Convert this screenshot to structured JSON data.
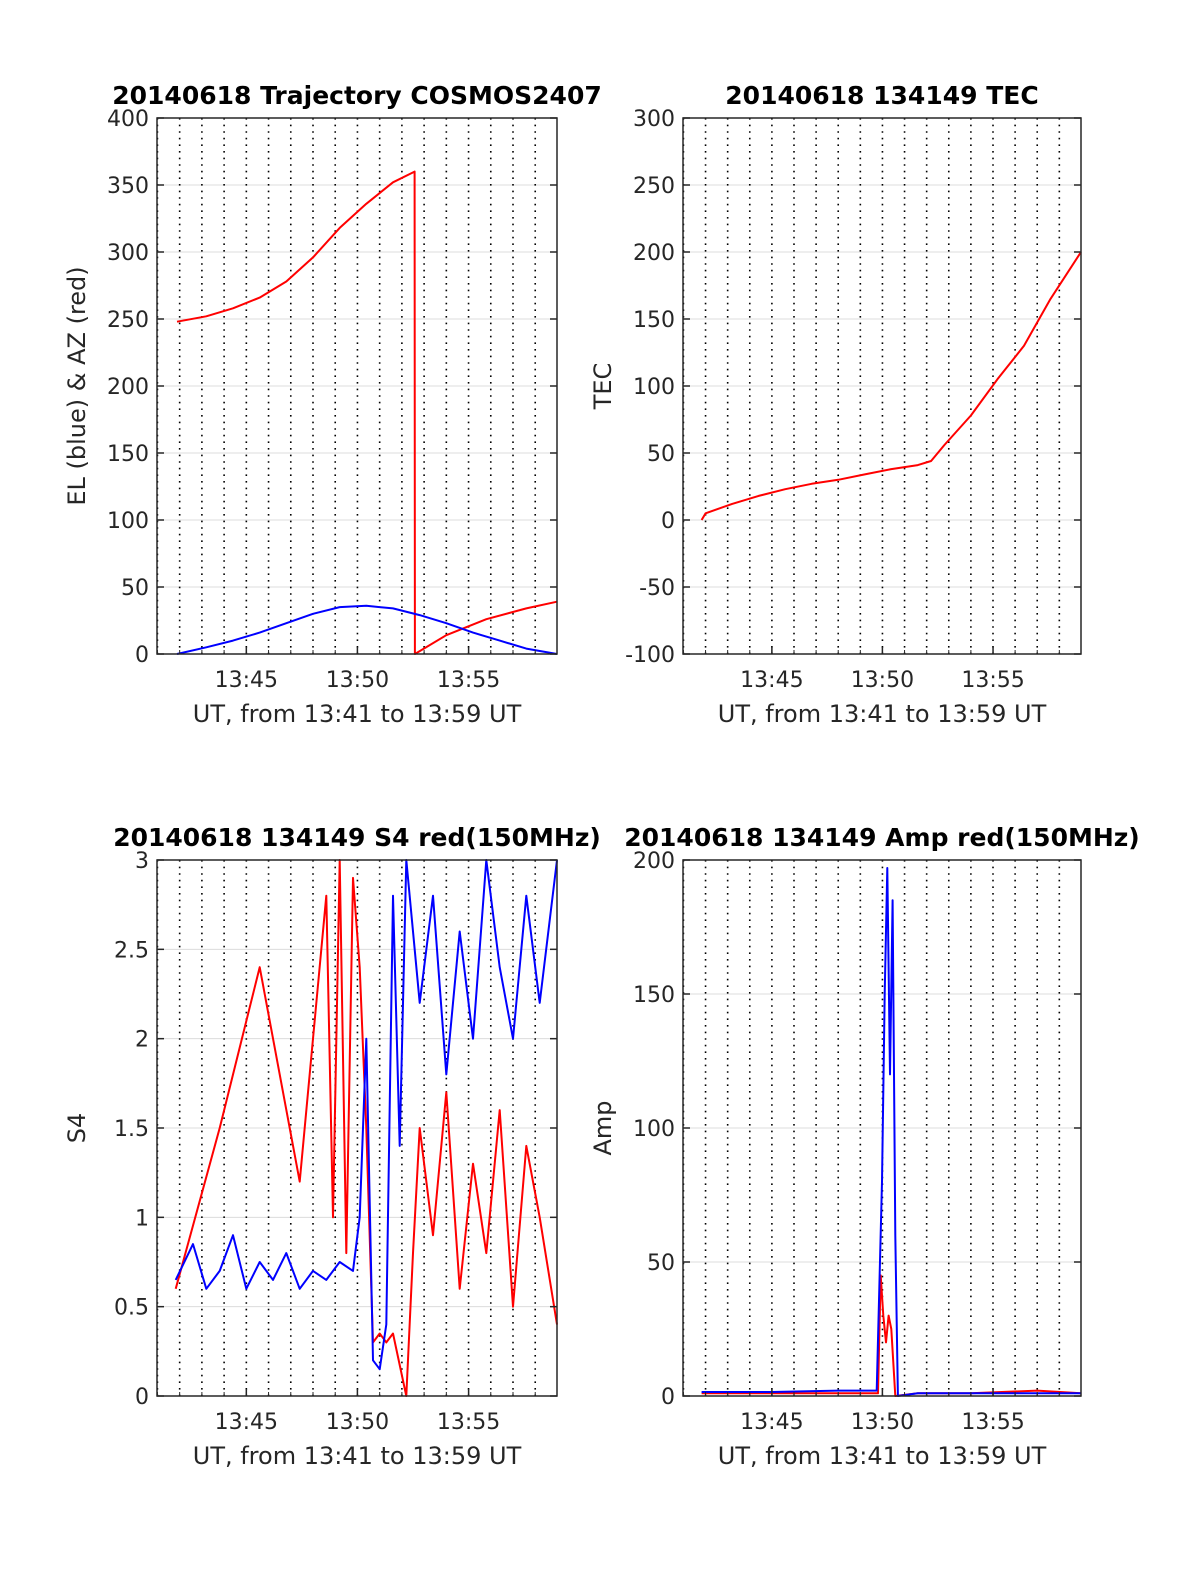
{
  "colors": {
    "red": "#ff0000",
    "blue": "#0000ff",
    "grid": "#dcdcdc",
    "axis": "#262626"
  },
  "chart_data": [
    {
      "type": "line",
      "title": "20140618 Trajectory COSMOS2407",
      "xlabel": "UT, from 13:41 to 13:59 UT",
      "ylabel": "EL (blue) & AZ (red)",
      "xlim": [
        13.683,
        13.983
      ],
      "ylim": [
        0,
        400
      ],
      "xticks": [
        13.75,
        13.8333,
        13.9167
      ],
      "xtick_labels": [
        "13:45",
        "13:50",
        "13:55"
      ],
      "yticks": [
        0,
        50,
        100,
        150,
        200,
        250,
        300,
        350,
        400
      ],
      "ytick_labels": [
        "0",
        "50",
        "100",
        "150",
        "200",
        "250",
        "300",
        "350",
        "400"
      ],
      "grid": "dotted vertical every 1 min, light horizontal",
      "series": [
        {
          "color": "red",
          "x": [
            13.698,
            13.72,
            13.74,
            13.76,
            13.78,
            13.8,
            13.82,
            13.84,
            13.86,
            13.8762,
            13.8764,
            13.9,
            13.93,
            13.96,
            13.983
          ],
          "y": [
            248,
            252,
            258,
            266,
            278,
            296,
            318,
            336,
            352,
            360,
            0,
            14,
            26,
            34,
            39
          ]
        },
        {
          "color": "blue",
          "x": [
            13.698,
            13.72,
            13.74,
            13.76,
            13.78,
            13.8,
            13.82,
            13.84,
            13.86,
            13.88,
            13.9,
            13.92,
            13.94,
            13.96,
            13.983
          ],
          "y": [
            0,
            5,
            10,
            16,
            23,
            30,
            35,
            36,
            34,
            29,
            23,
            16,
            10,
            4,
            0
          ]
        }
      ]
    },
    {
      "type": "line",
      "title": "20140618 134149 TEC",
      "xlabel": "UT, from 13:41 to 13:59 UT",
      "ylabel": "TEC",
      "xlim": [
        13.683,
        13.983
      ],
      "ylim": [
        -100,
        300
      ],
      "xticks": [
        13.75,
        13.8333,
        13.9167
      ],
      "xtick_labels": [
        "13:45",
        "13:50",
        "13:55"
      ],
      "yticks": [
        -100,
        -50,
        0,
        50,
        100,
        150,
        200,
        250,
        300
      ],
      "ytick_labels": [
        "-100",
        "-50",
        "0",
        "50",
        "100",
        "150",
        "200",
        "250",
        "300"
      ],
      "series": [
        {
          "color": "red",
          "x": [
            13.697,
            13.7,
            13.72,
            13.74,
            13.76,
            13.78,
            13.8,
            13.82,
            13.84,
            13.86,
            13.87,
            13.88,
            13.9,
            13.92,
            13.94,
            13.96,
            13.983
          ],
          "y": [
            0,
            5,
            12,
            18,
            23,
            27,
            30,
            34,
            38,
            41,
            44,
            56,
            78,
            105,
            130,
            165,
            200
          ]
        }
      ]
    },
    {
      "type": "line",
      "title": "20140618 134149 S4 red(150MHz)",
      "xlabel": "UT, from 13:41 to 13:59 UT",
      "ylabel": "S4",
      "xlim": [
        13.683,
        13.983
      ],
      "ylim": [
        0,
        3
      ],
      "xticks": [
        13.75,
        13.8333,
        13.9167
      ],
      "xtick_labels": [
        "13:45",
        "13:50",
        "13:55"
      ],
      "yticks": [
        0,
        0.5,
        1,
        1.5,
        2,
        2.5,
        3
      ],
      "ytick_labels": [
        "0",
        "0.5",
        "1",
        "1.5",
        "2",
        "2.5",
        "3"
      ],
      "series": [
        {
          "color": "red",
          "x": [
            13.697,
            13.73,
            13.76,
            13.79,
            13.81,
            13.815,
            13.82,
            13.825,
            13.83,
            13.835,
            13.84,
            13.845,
            13.85,
            13.855,
            13.86,
            13.87,
            13.875,
            13.88,
            13.89,
            13.9,
            13.91,
            13.92,
            13.93,
            13.94,
            13.95,
            13.96,
            13.97,
            13.983
          ],
          "y": [
            0.6,
            1.5,
            2.4,
            1.2,
            2.8,
            1.0,
            3.0,
            0.8,
            2.9,
            2.4,
            1.5,
            0.3,
            0.35,
            0.3,
            0.35,
            0.0,
            0.8,
            1.5,
            0.9,
            1.7,
            0.6,
            1.3,
            0.8,
            1.6,
            0.5,
            1.4,
            1.0,
            0.4
          ]
        },
        {
          "color": "blue",
          "x": [
            13.697,
            13.71,
            13.72,
            13.73,
            13.74,
            13.75,
            13.76,
            13.77,
            13.78,
            13.79,
            13.8,
            13.81,
            13.82,
            13.83,
            13.835,
            13.84,
            13.845,
            13.85,
            13.855,
            13.86,
            13.865,
            13.87,
            13.88,
            13.89,
            13.9,
            13.91,
            13.92,
            13.93,
            13.94,
            13.95,
            13.96,
            13.97,
            13.983
          ],
          "y": [
            0.65,
            0.85,
            0.6,
            0.7,
            0.9,
            0.6,
            0.75,
            0.65,
            0.8,
            0.6,
            0.7,
            0.65,
            0.75,
            0.7,
            1.0,
            2.0,
            0.2,
            0.15,
            0.4,
            2.8,
            1.4,
            3.0,
            2.2,
            2.8,
            1.8,
            2.6,
            2.0,
            3.0,
            2.4,
            2.0,
            2.8,
            2.2,
            3.0
          ]
        }
      ]
    },
    {
      "type": "line",
      "title": "20140618 134149 Amp red(150MHz)",
      "xlabel": "UT, from 13:41 to 13:59 UT",
      "ylabel": "Amp",
      "xlim": [
        13.683,
        13.983
      ],
      "ylim": [
        0,
        200
      ],
      "xticks": [
        13.75,
        13.8333,
        13.9167
      ],
      "xtick_labels": [
        "13:45",
        "13:50",
        "13:55"
      ],
      "yticks": [
        0,
        50,
        100,
        150,
        200
      ],
      "ytick_labels": [
        "0",
        "50",
        "100",
        "150",
        "200"
      ],
      "series": [
        {
          "color": "red",
          "x": [
            13.697,
            13.75,
            13.8,
            13.83,
            13.832,
            13.834,
            13.836,
            13.838,
            13.84,
            13.843,
            13.86,
            13.9,
            13.95,
            13.983
          ],
          "y": [
            1,
            1,
            1,
            1,
            45,
            30,
            20,
            30,
            25,
            0,
            1,
            1,
            2,
            1
          ]
        },
        {
          "color": "blue",
          "x": [
            13.697,
            13.75,
            13.8,
            13.829,
            13.831,
            13.833,
            13.835,
            13.837,
            13.839,
            13.841,
            13.843,
            13.845,
            13.86,
            13.9,
            13.95,
            13.983
          ],
          "y": [
            1.5,
            1.5,
            2,
            2,
            40,
            80,
            150,
            197,
            120,
            185,
            60,
            0,
            1,
            1,
            1,
            1
          ]
        }
      ]
    }
  ]
}
